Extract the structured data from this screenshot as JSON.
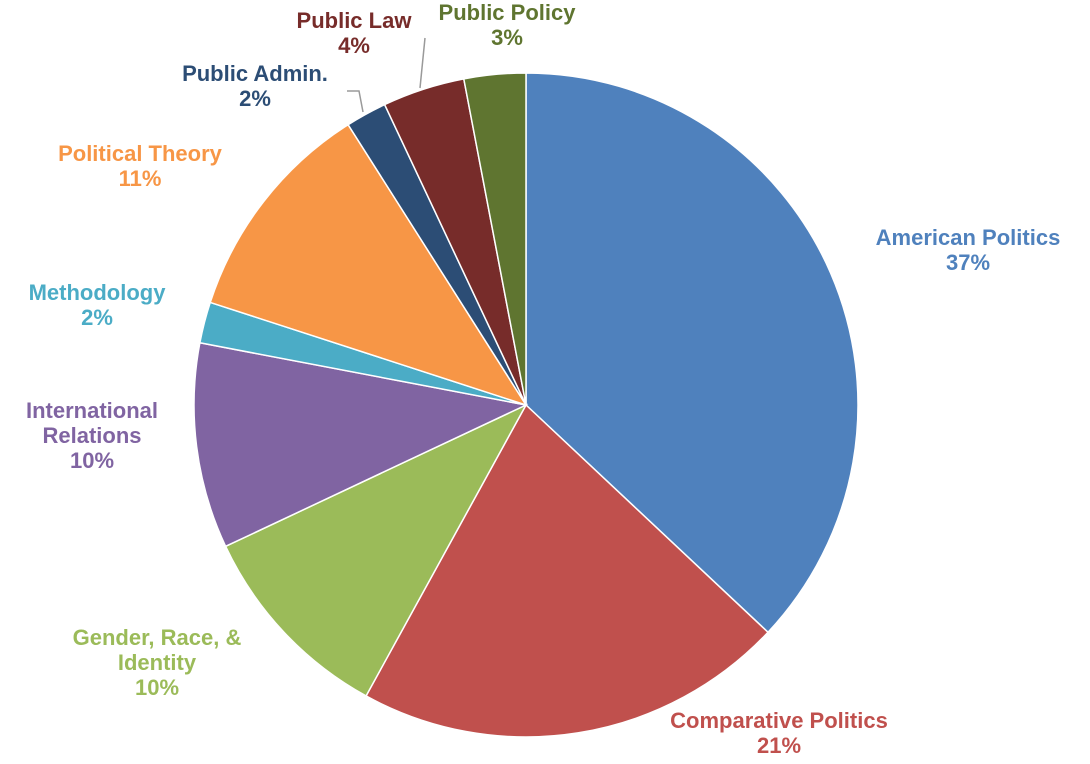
{
  "chart_data": {
    "type": "pie",
    "title": "",
    "start": "12 o'clock",
    "direction": "clockwise",
    "legend": "none",
    "data_labels": "category name and percentage",
    "slices": [
      {
        "name": "American Politics",
        "name_lines": [
          "American Politics"
        ],
        "value": 37,
        "label": "37%",
        "color": "#4F81BD"
      },
      {
        "name": "Comparative Politics",
        "name_lines": [
          "Comparative Politics"
        ],
        "value": 21,
        "label": "21%",
        "color": "#C0504D"
      },
      {
        "name": "Gender, Race, & Identity",
        "name_lines": [
          "Gender, Race, &",
          "Identity"
        ],
        "value": 10,
        "label": "10%",
        "color": "#9BBB59"
      },
      {
        "name": "International Relations",
        "name_lines": [
          "International",
          "Relations"
        ],
        "value": 10,
        "label": "10%",
        "color": "#8064A2"
      },
      {
        "name": "Methodology",
        "name_lines": [
          "Methodology"
        ],
        "value": 2,
        "label": "2%",
        "color": "#4BACC6"
      },
      {
        "name": "Political Theory",
        "name_lines": [
          "Political Theory"
        ],
        "value": 11,
        "label": "11%",
        "color": "#F79646"
      },
      {
        "name": "Public Admin.",
        "name_lines": [
          "Public Admin."
        ],
        "value": 2,
        "label": "2%",
        "color": "#2C4D75"
      },
      {
        "name": "Public Law",
        "name_lines": [
          "Public Law"
        ],
        "value": 4,
        "label": "4%",
        "color": "#772C2A"
      },
      {
        "name": "Public Policy",
        "name_lines": [
          "Public Policy"
        ],
        "value": 3,
        "label": "3%",
        "color": "#5F7530"
      }
    ],
    "label_colors": {
      "American Politics": "#4F81BD",
      "Comparative Politics": "#C0504D",
      "Gender, Race, & Identity": "#9BBB59",
      "International Relations": "#8064A2",
      "Methodology": "#4BACC6",
      "Political Theory": "#F79646",
      "Public Admin.": "#2C4D75",
      "Public Law": "#772C2A",
      "Public Policy": "#5F7530"
    }
  }
}
